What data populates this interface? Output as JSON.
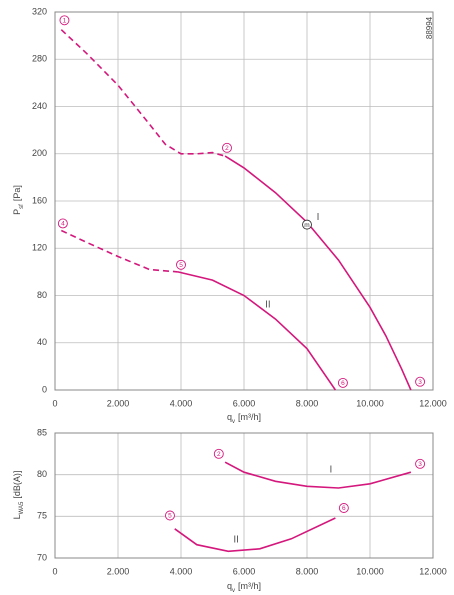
{
  "doc_id": "88994",
  "chart_data": [
    {
      "type": "line",
      "ylabel": {
        "main": "P",
        "sub": "sf",
        "unit": "[Pa]"
      },
      "xlabel": {
        "main": "q",
        "sub": "v",
        "unit": "[m³/h]"
      },
      "xlim": [
        0,
        12000
      ],
      "xticks": [
        0,
        {
          "value": 2000,
          "label": "2.000"
        },
        {
          "value": 4000,
          "label": "4.000"
        },
        {
          "value": 6000,
          "label": "6.000"
        },
        {
          "value": 8000,
          "label": "8.000"
        },
        {
          "value": 10000,
          "label": "10.000"
        },
        {
          "value": 12000,
          "label": "12.000"
        }
      ],
      "ylim": [
        0,
        320
      ],
      "yticks": [
        0,
        40,
        80,
        120,
        160,
        200,
        240,
        280,
        320
      ],
      "grid": true,
      "series": [
        {
          "color": "#d4177c",
          "segments": [
            {
              "style": "dashed",
              "x": [
                200,
                1000,
                2000,
                3000,
                3500,
                4000,
                4500,
                5000,
                5400
              ],
              "values": [
                305,
                285,
                258,
                225,
                208,
                200,
                200,
                201,
                198
              ]
            },
            {
              "style": "solid",
              "x": [
                5400,
                6000,
                7000,
                8000,
                9000,
                10000,
                10500,
                11000,
                11300
              ],
              "values": [
                198,
                188,
                167,
                142,
                110,
                70,
                46,
                18,
                0
              ]
            }
          ]
        },
        {
          "color": "#d4177c",
          "segments": [
            {
              "style": "dashed",
              "x": [
                200,
                1000,
                2000,
                3000,
                3900
              ],
              "values": [
                135,
                125,
                113,
                102,
                100
              ]
            },
            {
              "style": "solid",
              "x": [
                3900,
                5000,
                6000,
                7000,
                8000,
                8900
              ],
              "values": [
                100,
                93,
                80,
                60,
                35,
                0
              ]
            }
          ]
        }
      ],
      "markers": [
        {
          "label": "1",
          "x": 300,
          "y": 313,
          "color": "#d4177c"
        },
        {
          "label": "2",
          "x": 5460,
          "y": 205,
          "color": "#d4177c"
        },
        {
          "label": "3",
          "x": 11590,
          "y": 7,
          "color": "#d4177c"
        },
        {
          "label": "4",
          "x": 250,
          "y": 141,
          "color": "#d4177c"
        },
        {
          "label": "5",
          "x": 4000,
          "y": 106,
          "color": "#d4177c"
        },
        {
          "label": "6",
          "x": 9140,
          "y": 6,
          "color": "#d4177c"
        },
        {
          "label": "m",
          "x": 8000,
          "y": 140,
          "color": "#333333"
        }
      ],
      "annotations": [
        {
          "text": "I",
          "x": 8350,
          "y": 146
        },
        {
          "text": "II",
          "x": 6760,
          "y": 72
        }
      ]
    },
    {
      "type": "line",
      "ylabel": {
        "main": "L",
        "sub": "WA5",
        "unit": "[dB(A)]"
      },
      "xlabel": {
        "main": "q",
        "sub": "v",
        "unit": "[m³/h]"
      },
      "xlim": [
        0,
        12000
      ],
      "xticks": [
        0,
        {
          "value": 2000,
          "label": "2.000"
        },
        {
          "value": 4000,
          "label": "4.000"
        },
        {
          "value": 6000,
          "label": "6.000"
        },
        {
          "value": 8000,
          "label": "8.000"
        },
        {
          "value": 10000,
          "label": "10.000"
        },
        {
          "value": 12000,
          "label": "12.000"
        }
      ],
      "ylim": [
        70,
        85
      ],
      "yticks": [
        70,
        75,
        80,
        85
      ],
      "grid": true,
      "series": [
        {
          "color": "#d4177c",
          "segments": [
            {
              "style": "solid",
              "x": [
                5400,
                6000,
                7000,
                8000,
                9000,
                10000,
                11300
              ],
              "values": [
                81.5,
                80.3,
                79.2,
                78.6,
                78.4,
                78.9,
                80.3
              ]
            }
          ]
        },
        {
          "color": "#d4177c",
          "segments": [
            {
              "style": "solid",
              "x": [
                3800,
                4500,
                5500,
                6500,
                7500,
                8900
              ],
              "values": [
                73.5,
                71.6,
                70.8,
                71.1,
                72.3,
                74.8
              ]
            }
          ]
        }
      ],
      "markers": [
        {
          "label": "2",
          "x": 5200,
          "y": 82.5,
          "color": "#d4177c"
        },
        {
          "label": "3",
          "x": 11590,
          "y": 81.3,
          "color": "#d4177c"
        },
        {
          "label": "5",
          "x": 3650,
          "y": 75.1,
          "color": "#d4177c"
        },
        {
          "label": "6",
          "x": 9170,
          "y": 76.0,
          "color": "#d4177c"
        }
      ],
      "annotations": [
        {
          "text": "I",
          "x": 8760,
          "y": 80.6
        },
        {
          "text": "II",
          "x": 5750,
          "y": 72.2
        }
      ]
    }
  ]
}
